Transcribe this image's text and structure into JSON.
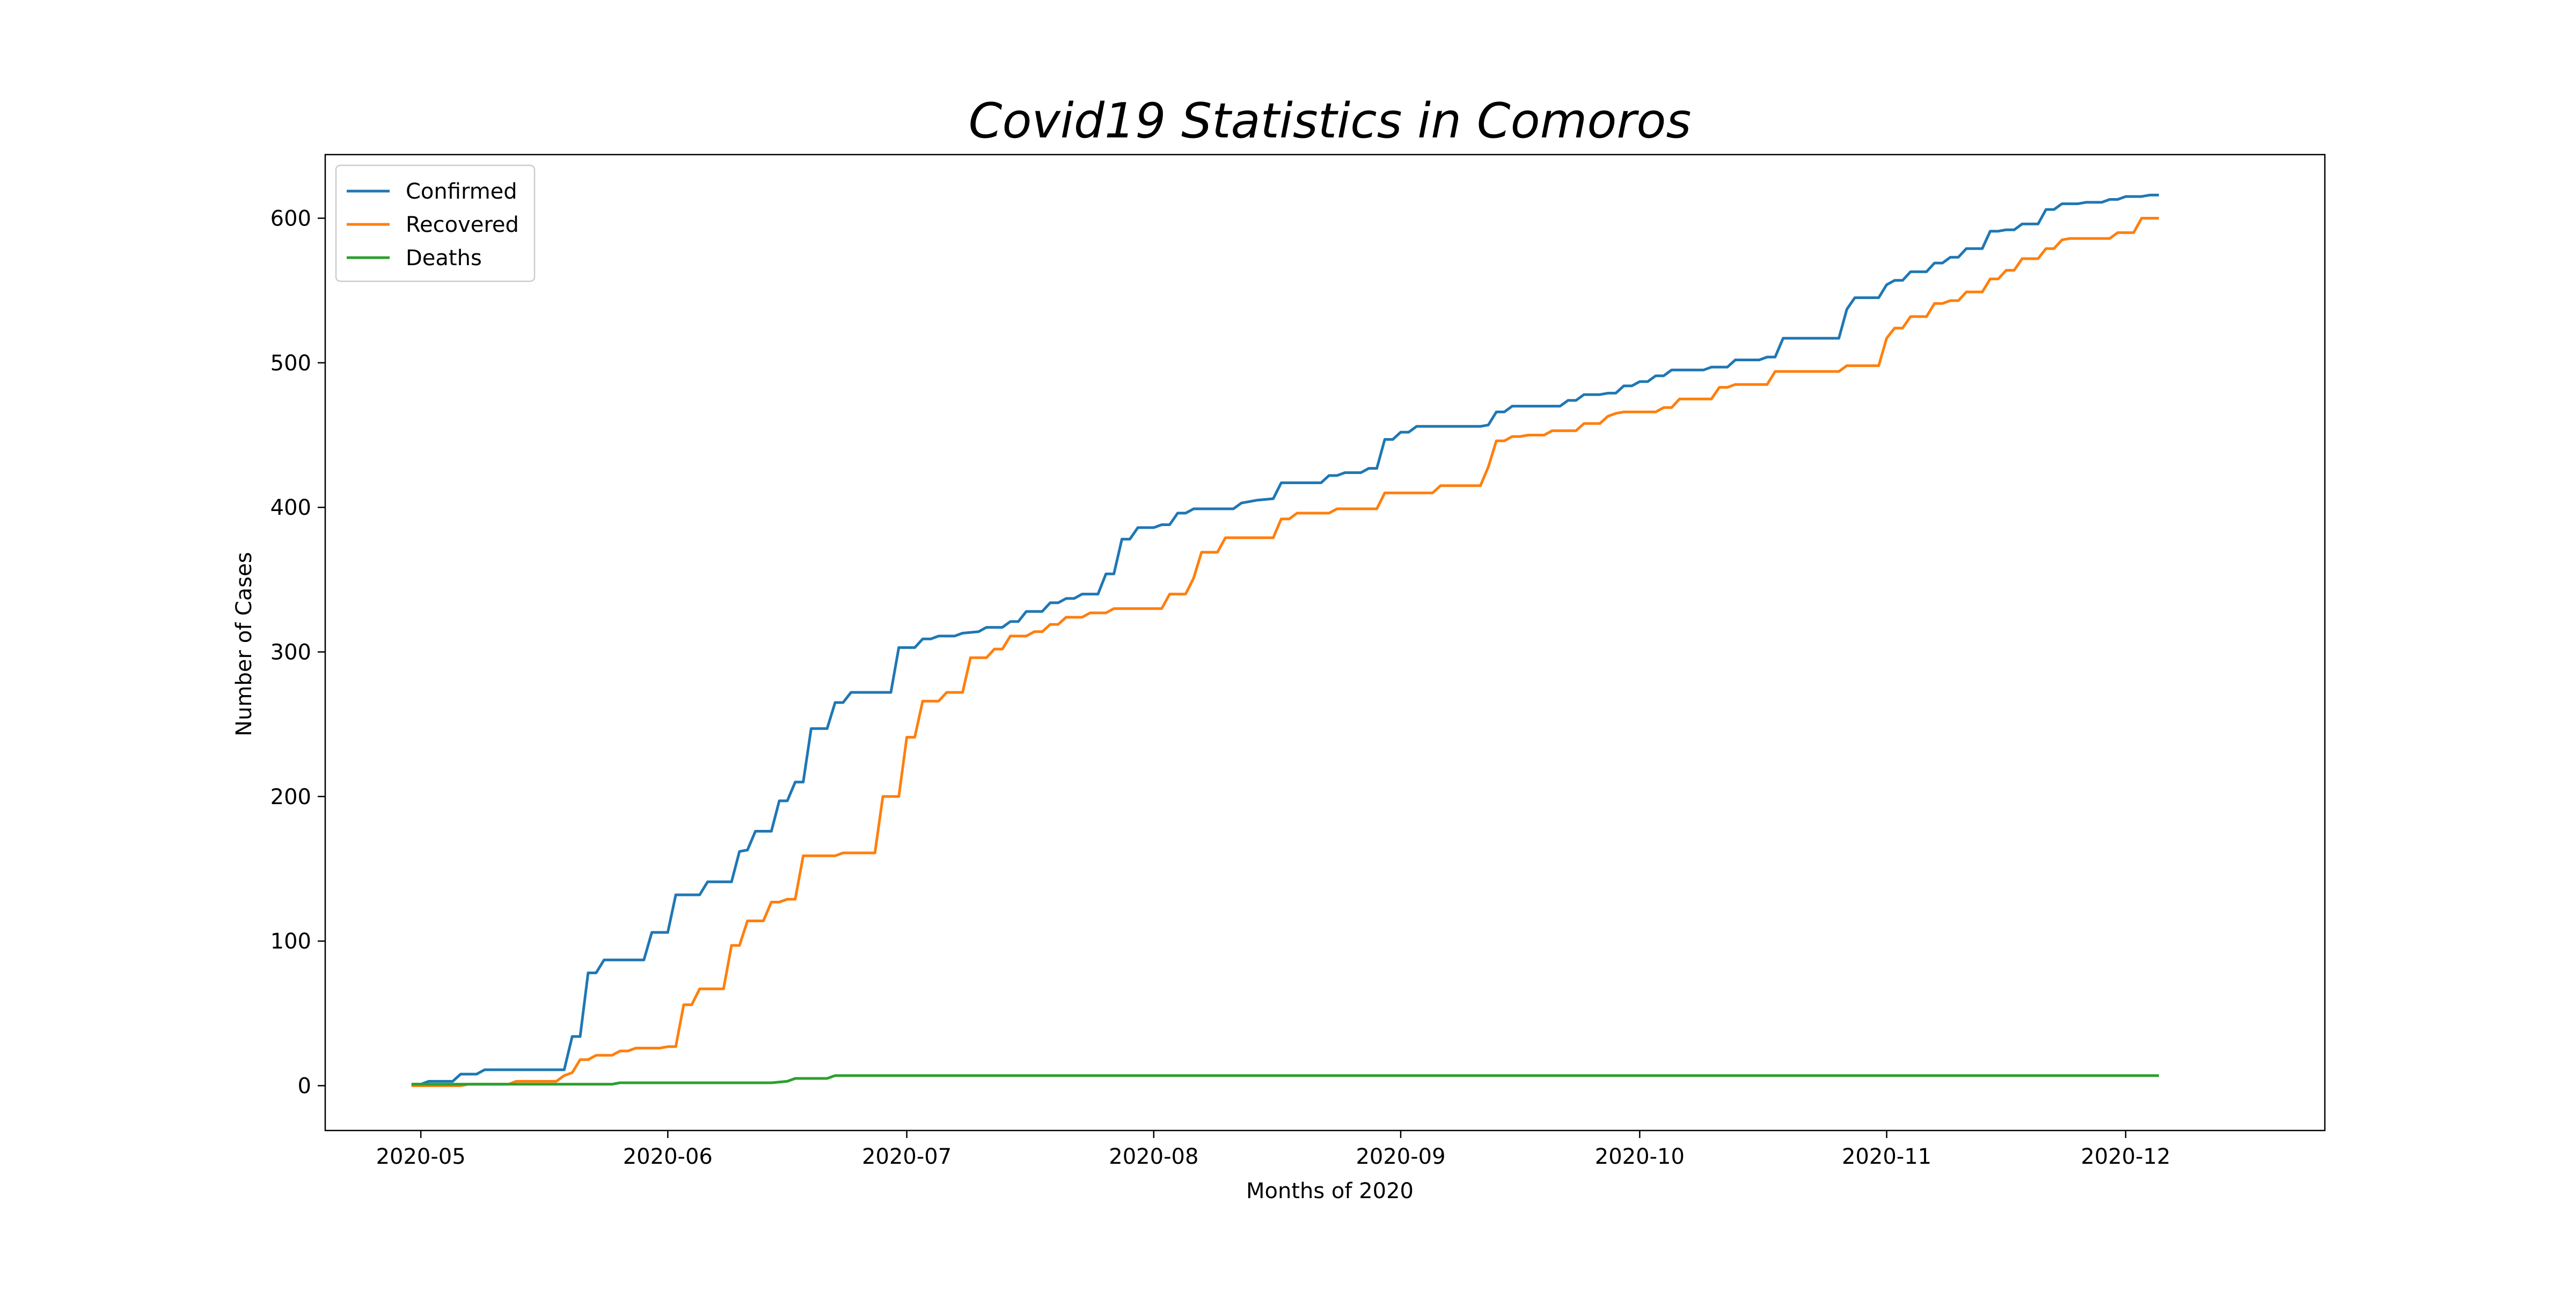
{
  "chart_data": {
    "type": "line",
    "title": "Covid19 Statistics in Comoros",
    "xlabel": "Months of 2020",
    "ylabel": "Number of Cases",
    "xlim": [
      "2020-04-19",
      "2020-12-26"
    ],
    "ylim": [
      -31,
      644
    ],
    "x_ticks": [
      "2020-05-01",
      "2020-06-01",
      "2020-07-01",
      "2020-08-01",
      "2020-09-01",
      "2020-10-01",
      "2020-11-01",
      "2020-12-01"
    ],
    "x_tick_labels": [
      "2020-05",
      "2020-06",
      "2020-07",
      "2020-08",
      "2020-09",
      "2020-10",
      "2020-11",
      "2020-12"
    ],
    "y_ticks": [
      0,
      100,
      200,
      300,
      400,
      500,
      600
    ],
    "y_tick_labels": [
      "0",
      "100",
      "200",
      "300",
      "400",
      "500",
      "600"
    ],
    "grid": false,
    "legend_position": "top-left",
    "series": [
      {
        "name": "Confirmed",
        "color": "#1f77b4",
        "points": [
          [
            "2020-04-30",
            1
          ],
          [
            "2020-05-01",
            1
          ],
          [
            "2020-05-02",
            3
          ],
          [
            "2020-05-05",
            3
          ],
          [
            "2020-05-06",
            8
          ],
          [
            "2020-05-08",
            8
          ],
          [
            "2020-05-09",
            11
          ],
          [
            "2020-05-19",
            11
          ],
          [
            "2020-05-20",
            34
          ],
          [
            "2020-05-21",
            34
          ],
          [
            "2020-05-22",
            78
          ],
          [
            "2020-05-23",
            78
          ],
          [
            "2020-05-24",
            87
          ],
          [
            "2020-05-29",
            87
          ],
          [
            "2020-05-30",
            106
          ],
          [
            "2020-06-01",
            106
          ],
          [
            "2020-06-02",
            132
          ],
          [
            "2020-06-05",
            132
          ],
          [
            "2020-06-06",
            141
          ],
          [
            "2020-06-09",
            141
          ],
          [
            "2020-06-10",
            162
          ],
          [
            "2020-06-11",
            163
          ],
          [
            "2020-06-12",
            176
          ],
          [
            "2020-06-14",
            176
          ],
          [
            "2020-06-15",
            197
          ],
          [
            "2020-06-16",
            197
          ],
          [
            "2020-06-17",
            210
          ],
          [
            "2020-06-18",
            210
          ],
          [
            "2020-06-19",
            247
          ],
          [
            "2020-06-21",
            247
          ],
          [
            "2020-06-22",
            265
          ],
          [
            "2020-06-23",
            265
          ],
          [
            "2020-06-24",
            272
          ],
          [
            "2020-06-29",
            272
          ],
          [
            "2020-06-30",
            303
          ],
          [
            "2020-07-02",
            303
          ],
          [
            "2020-07-03",
            309
          ],
          [
            "2020-07-04",
            309
          ],
          [
            "2020-07-05",
            311
          ],
          [
            "2020-07-07",
            311
          ],
          [
            "2020-07-08",
            313
          ],
          [
            "2020-07-10",
            314
          ],
          [
            "2020-07-11",
            317
          ],
          [
            "2020-07-13",
            317
          ],
          [
            "2020-07-14",
            321
          ],
          [
            "2020-07-15",
            321
          ],
          [
            "2020-07-16",
            328
          ],
          [
            "2020-07-18",
            328
          ],
          [
            "2020-07-19",
            334
          ],
          [
            "2020-07-20",
            334
          ],
          [
            "2020-07-21",
            337
          ],
          [
            "2020-07-22",
            337
          ],
          [
            "2020-07-23",
            340
          ],
          [
            "2020-07-25",
            340
          ],
          [
            "2020-07-26",
            354
          ],
          [
            "2020-07-27",
            354
          ],
          [
            "2020-07-28",
            378
          ],
          [
            "2020-07-29",
            378
          ],
          [
            "2020-07-30",
            386
          ],
          [
            "2020-08-01",
            386
          ],
          [
            "2020-08-02",
            388
          ],
          [
            "2020-08-03",
            388
          ],
          [
            "2020-08-04",
            396
          ],
          [
            "2020-08-05",
            396
          ],
          [
            "2020-08-06",
            399
          ],
          [
            "2020-08-11",
            399
          ],
          [
            "2020-08-12",
            403
          ],
          [
            "2020-08-13",
            404
          ],
          [
            "2020-08-14",
            405
          ],
          [
            "2020-08-16",
            406
          ],
          [
            "2020-08-17",
            417
          ],
          [
            "2020-08-22",
            417
          ],
          [
            "2020-08-23",
            422
          ],
          [
            "2020-08-24",
            422
          ],
          [
            "2020-08-25",
            424
          ],
          [
            "2020-08-27",
            424
          ],
          [
            "2020-08-28",
            427
          ],
          [
            "2020-08-29",
            427
          ],
          [
            "2020-08-30",
            447
          ],
          [
            "2020-08-31",
            447
          ],
          [
            "2020-09-01",
            452
          ],
          [
            "2020-09-02",
            452
          ],
          [
            "2020-09-03",
            456
          ],
          [
            "2020-09-11",
            456
          ],
          [
            "2020-09-12",
            457
          ],
          [
            "2020-09-13",
            466
          ],
          [
            "2020-09-14",
            466
          ],
          [
            "2020-09-15",
            470
          ],
          [
            "2020-09-21",
            470
          ],
          [
            "2020-09-22",
            474
          ],
          [
            "2020-09-23",
            474
          ],
          [
            "2020-09-24",
            478
          ],
          [
            "2020-09-26",
            478
          ],
          [
            "2020-09-27",
            479
          ],
          [
            "2020-09-28",
            479
          ],
          [
            "2020-09-29",
            484
          ],
          [
            "2020-09-30",
            484
          ],
          [
            "2020-10-01",
            487
          ],
          [
            "2020-10-02",
            487
          ],
          [
            "2020-10-03",
            491
          ],
          [
            "2020-10-04",
            491
          ],
          [
            "2020-10-05",
            495
          ],
          [
            "2020-10-09",
            495
          ],
          [
            "2020-10-10",
            497
          ],
          [
            "2020-10-12",
            497
          ],
          [
            "2020-10-13",
            502
          ],
          [
            "2020-10-16",
            502
          ],
          [
            "2020-10-17",
            504
          ],
          [
            "2020-10-18",
            504
          ],
          [
            "2020-10-19",
            517
          ],
          [
            "2020-10-26",
            517
          ],
          [
            "2020-10-27",
            537
          ],
          [
            "2020-10-28",
            545
          ],
          [
            "2020-10-31",
            545
          ],
          [
            "2020-11-01",
            554
          ],
          [
            "2020-11-02",
            557
          ],
          [
            "2020-11-03",
            557
          ],
          [
            "2020-11-04",
            563
          ],
          [
            "2020-11-06",
            563
          ],
          [
            "2020-11-07",
            569
          ],
          [
            "2020-11-08",
            569
          ],
          [
            "2020-11-09",
            573
          ],
          [
            "2020-11-10",
            573
          ],
          [
            "2020-11-11",
            579
          ],
          [
            "2020-11-13",
            579
          ],
          [
            "2020-11-14",
            591
          ],
          [
            "2020-11-15",
            591
          ],
          [
            "2020-11-16",
            592
          ],
          [
            "2020-11-17",
            592
          ],
          [
            "2020-11-18",
            596
          ],
          [
            "2020-11-20",
            596
          ],
          [
            "2020-11-21",
            606
          ],
          [
            "2020-11-22",
            606
          ],
          [
            "2020-11-23",
            610
          ],
          [
            "2020-11-25",
            610
          ],
          [
            "2020-11-26",
            611
          ],
          [
            "2020-11-28",
            611
          ],
          [
            "2020-11-29",
            613
          ],
          [
            "2020-11-30",
            613
          ],
          [
            "2020-12-01",
            615
          ],
          [
            "2020-12-03",
            615
          ],
          [
            "2020-12-04",
            616
          ],
          [
            "2020-12-05",
            616
          ]
        ]
      },
      {
        "name": "Recovered",
        "color": "#ff7f0e",
        "points": [
          [
            "2020-04-30",
            0
          ],
          [
            "2020-05-06",
            0
          ],
          [
            "2020-05-07",
            1
          ],
          [
            "2020-05-12",
            1
          ],
          [
            "2020-05-13",
            3
          ],
          [
            "2020-05-18",
            3
          ],
          [
            "2020-05-19",
            7
          ],
          [
            "2020-05-20",
            9
          ],
          [
            "2020-05-21",
            18
          ],
          [
            "2020-05-22",
            18
          ],
          [
            "2020-05-23",
            21
          ],
          [
            "2020-05-25",
            21
          ],
          [
            "2020-05-26",
            24
          ],
          [
            "2020-05-27",
            24
          ],
          [
            "2020-05-28",
            26
          ],
          [
            "2020-05-31",
            26
          ],
          [
            "2020-06-01",
            27
          ],
          [
            "2020-06-02",
            27
          ],
          [
            "2020-06-03",
            56
          ],
          [
            "2020-06-04",
            56
          ],
          [
            "2020-06-05",
            67
          ],
          [
            "2020-06-08",
            67
          ],
          [
            "2020-06-09",
            97
          ],
          [
            "2020-06-10",
            97
          ],
          [
            "2020-06-11",
            114
          ],
          [
            "2020-06-13",
            114
          ],
          [
            "2020-06-14",
            127
          ],
          [
            "2020-06-15",
            127
          ],
          [
            "2020-06-16",
            129
          ],
          [
            "2020-06-17",
            129
          ],
          [
            "2020-06-18",
            159
          ],
          [
            "2020-06-22",
            159
          ],
          [
            "2020-06-23",
            161
          ],
          [
            "2020-06-27",
            161
          ],
          [
            "2020-06-28",
            200
          ],
          [
            "2020-06-30",
            200
          ],
          [
            "2020-07-01",
            241
          ],
          [
            "2020-07-02",
            241
          ],
          [
            "2020-07-03",
            266
          ],
          [
            "2020-07-05",
            266
          ],
          [
            "2020-07-06",
            272
          ],
          [
            "2020-07-08",
            272
          ],
          [
            "2020-07-09",
            296
          ],
          [
            "2020-07-11",
            296
          ],
          [
            "2020-07-12",
            302
          ],
          [
            "2020-07-13",
            302
          ],
          [
            "2020-07-14",
            311
          ],
          [
            "2020-07-16",
            311
          ],
          [
            "2020-07-17",
            314
          ],
          [
            "2020-07-18",
            314
          ],
          [
            "2020-07-19",
            319
          ],
          [
            "2020-07-20",
            319
          ],
          [
            "2020-07-21",
            324
          ],
          [
            "2020-07-23",
            324
          ],
          [
            "2020-07-24",
            327
          ],
          [
            "2020-07-26",
            327
          ],
          [
            "2020-07-27",
            330
          ],
          [
            "2020-08-02",
            330
          ],
          [
            "2020-08-03",
            340
          ],
          [
            "2020-08-05",
            340
          ],
          [
            "2020-08-06",
            351
          ],
          [
            "2020-08-07",
            369
          ],
          [
            "2020-08-09",
            369
          ],
          [
            "2020-08-10",
            379
          ],
          [
            "2020-08-16",
            379
          ],
          [
            "2020-08-17",
            392
          ],
          [
            "2020-08-18",
            392
          ],
          [
            "2020-08-19",
            396
          ],
          [
            "2020-08-23",
            396
          ],
          [
            "2020-08-24",
            399
          ],
          [
            "2020-08-29",
            399
          ],
          [
            "2020-08-30",
            410
          ],
          [
            "2020-09-05",
            410
          ],
          [
            "2020-09-06",
            415
          ],
          [
            "2020-09-11",
            415
          ],
          [
            "2020-09-12",
            428
          ],
          [
            "2020-09-13",
            446
          ],
          [
            "2020-09-14",
            446
          ],
          [
            "2020-09-15",
            449
          ],
          [
            "2020-09-16",
            449
          ],
          [
            "2020-09-17",
            450
          ],
          [
            "2020-09-19",
            450
          ],
          [
            "2020-09-20",
            453
          ],
          [
            "2020-09-23",
            453
          ],
          [
            "2020-09-24",
            458
          ],
          [
            "2020-09-26",
            458
          ],
          [
            "2020-09-27",
            463
          ],
          [
            "2020-09-28",
            465
          ],
          [
            "2020-09-29",
            466
          ],
          [
            "2020-10-03",
            466
          ],
          [
            "2020-10-04",
            469
          ],
          [
            "2020-10-05",
            469
          ],
          [
            "2020-10-06",
            475
          ],
          [
            "2020-10-10",
            475
          ],
          [
            "2020-10-11",
            483
          ],
          [
            "2020-10-12",
            483
          ],
          [
            "2020-10-13",
            485
          ],
          [
            "2020-10-17",
            485
          ],
          [
            "2020-10-18",
            494
          ],
          [
            "2020-10-26",
            494
          ],
          [
            "2020-10-27",
            498
          ],
          [
            "2020-10-31",
            498
          ],
          [
            "2020-11-01",
            517
          ],
          [
            "2020-11-02",
            524
          ],
          [
            "2020-11-03",
            524
          ],
          [
            "2020-11-04",
            532
          ],
          [
            "2020-11-06",
            532
          ],
          [
            "2020-11-07",
            541
          ],
          [
            "2020-11-08",
            541
          ],
          [
            "2020-11-09",
            543
          ],
          [
            "2020-11-10",
            543
          ],
          [
            "2020-11-11",
            549
          ],
          [
            "2020-11-13",
            549
          ],
          [
            "2020-11-14",
            558
          ],
          [
            "2020-11-15",
            558
          ],
          [
            "2020-11-16",
            564
          ],
          [
            "2020-11-17",
            564
          ],
          [
            "2020-11-18",
            572
          ],
          [
            "2020-11-20",
            572
          ],
          [
            "2020-11-21",
            579
          ],
          [
            "2020-11-22",
            579
          ],
          [
            "2020-11-23",
            585
          ],
          [
            "2020-11-24",
            586
          ],
          [
            "2020-11-29",
            586
          ],
          [
            "2020-11-30",
            590
          ],
          [
            "2020-12-02",
            590
          ],
          [
            "2020-12-03",
            600
          ],
          [
            "2020-12-05",
            600
          ]
        ]
      },
      {
        "name": "Deaths",
        "color": "#2ca02c",
        "points": [
          [
            "2020-04-30",
            1
          ],
          [
            "2020-05-25",
            1
          ],
          [
            "2020-05-26",
            2
          ],
          [
            "2020-06-14",
            2
          ],
          [
            "2020-06-16",
            3
          ],
          [
            "2020-06-17",
            5
          ],
          [
            "2020-06-21",
            5
          ],
          [
            "2020-06-22",
            7
          ],
          [
            "2020-12-05",
            7
          ]
        ]
      }
    ]
  }
}
